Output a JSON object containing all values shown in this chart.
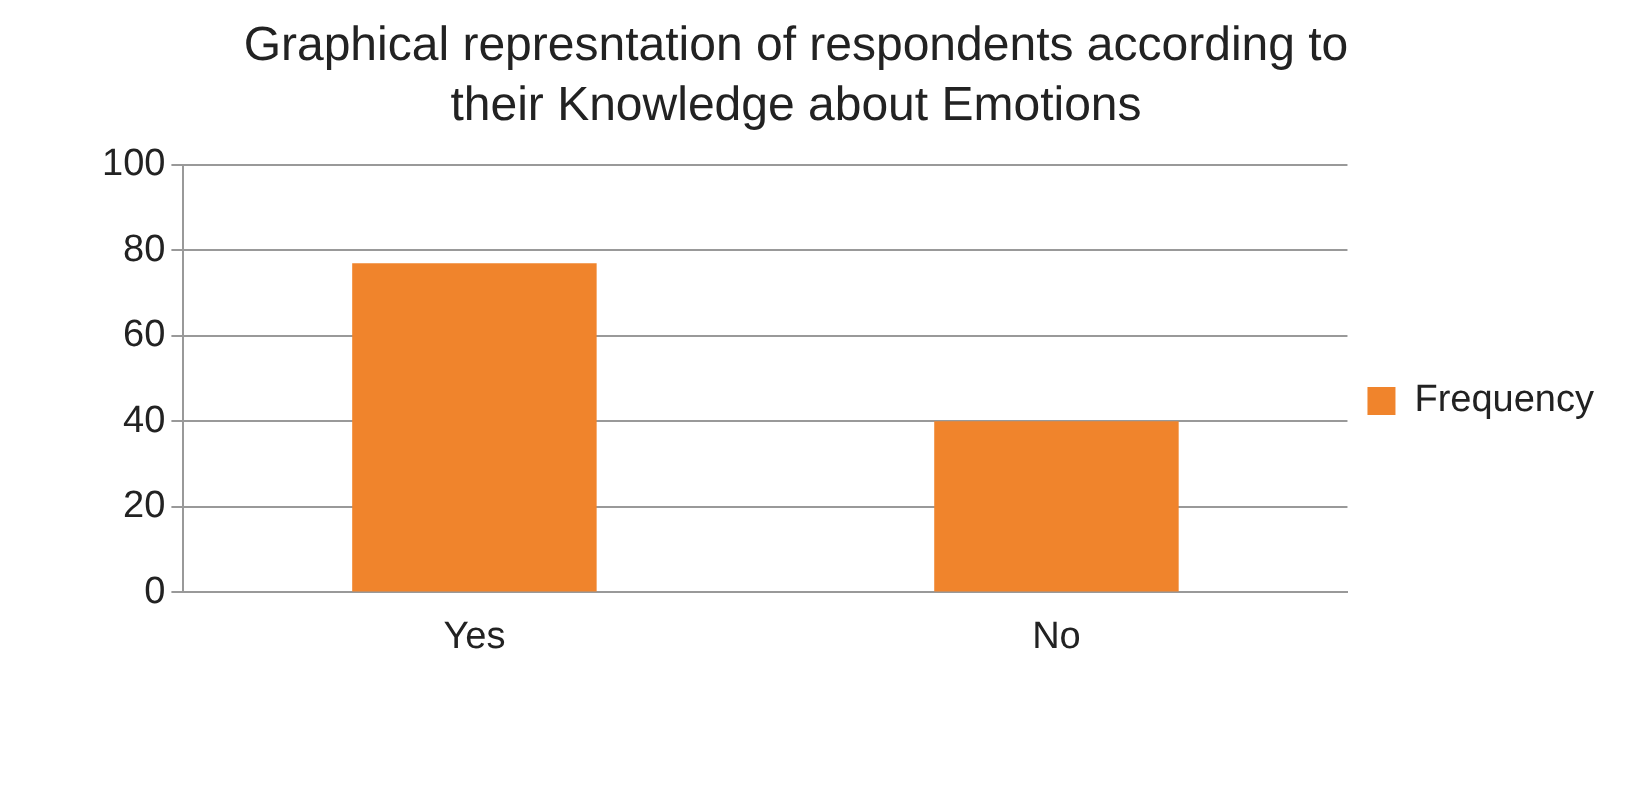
{
  "chart_data": {
    "type": "bar",
    "title": "Graphical represntation of respondents according to their Knowledge about Emotions",
    "categories": [
      "Yes",
      "No"
    ],
    "series": [
      {
        "name": "Frequency",
        "color": "#f0842c",
        "values": [
          77,
          40
        ]
      }
    ],
    "ylim": [
      0,
      100
    ],
    "yticks": [
      0,
      20,
      40,
      60,
      80,
      100
    ],
    "grid": "y",
    "legend": "right"
  }
}
